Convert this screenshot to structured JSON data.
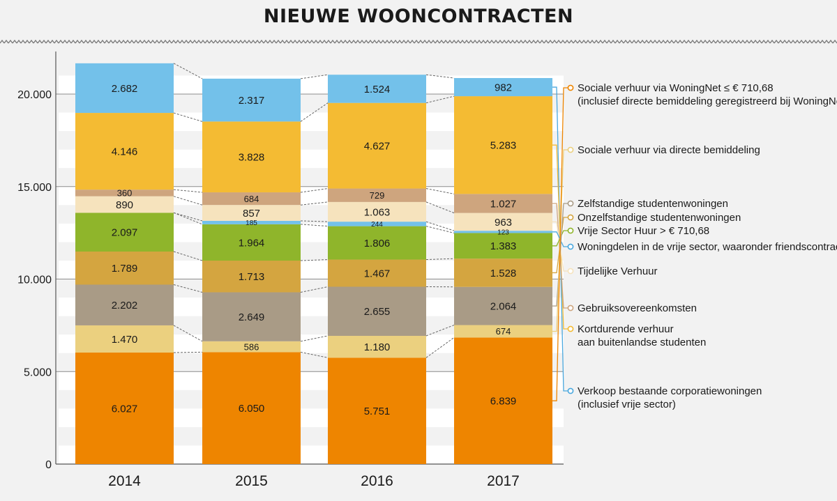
{
  "title": "NIEUWE WOONCONTRACTEN",
  "chart_data": {
    "type": "bar",
    "stacked": true,
    "title": "NIEUWE WOONCONTRACTEN",
    "categories": [
      "2014",
      "2015",
      "2016",
      "2017"
    ],
    "ylim": [
      0,
      22000
    ],
    "yticks": [
      0,
      5000,
      10000,
      15000,
      20000
    ],
    "ytick_labels": [
      "0",
      "5.000",
      "10.000",
      "15.000",
      "20.000"
    ],
    "grid": true,
    "legend_position": "right",
    "series": [
      {
        "name": "Sociale verhuur via WoningNet ≤ € 710,68",
        "note": "(inclusief directe bemiddeling geregistreerd bij WoningNet)",
        "color": "#ee8500",
        "values": [
          6027,
          6050,
          5751,
          6839
        ],
        "labels": [
          "6.027",
          "6.050",
          "5.751",
          "6.839"
        ]
      },
      {
        "name": "Sociale verhuur via directe bemiddeling",
        "note": "",
        "color": "#ebd07f",
        "values": [
          1470,
          586,
          1180,
          674
        ],
        "labels": [
          "1.470",
          "586",
          "1.180",
          "674"
        ]
      },
      {
        "name": "Zelfstandige studentenwoningen",
        "note": "",
        "color": "#a99b86",
        "values": [
          2202,
          2649,
          2655,
          2064
        ],
        "labels": [
          "2.202",
          "2.649",
          "2.655",
          "2.064"
        ]
      },
      {
        "name": "Onzelfstandige studentenwoningen",
        "note": "",
        "color": "#d4a540",
        "values": [
          1789,
          1713,
          1467,
          1528
        ],
        "labels": [
          "1.789",
          "1.713",
          "1.467",
          "1.528"
        ]
      },
      {
        "name": "Vrije Sector Huur >  € 710,68",
        "note": "",
        "color": "#8fb52b",
        "values": [
          2097,
          1964,
          1806,
          1383
        ],
        "labels": [
          "2.097",
          "1.964",
          "1.806",
          "1.383"
        ]
      },
      {
        "name": "Woningdelen in de vrije sector, waaronder friendscontracten",
        "note": "",
        "color": "#73c1ea",
        "values": [
          0,
          185,
          244,
          123
        ],
        "labels": [
          "",
          "185",
          "244",
          "123"
        ]
      },
      {
        "name": "Tijdelijke Verhuur",
        "note": "",
        "color": "#f6e3bd",
        "values": [
          890,
          857,
          1063,
          963
        ],
        "labels": [
          "890",
          "857",
          "1.063",
          "963"
        ]
      },
      {
        "name": "Gebruiksovereenkomsten",
        "note": "",
        "color": "#cea57e",
        "values": [
          360,
          684,
          729,
          1027
        ],
        "labels": [
          "360",
          "684",
          "729",
          "1.027"
        ]
      },
      {
        "name": "Kortdurende verhuur",
        "note": "aan buitenlandse studenten",
        "color": "#f4bb33",
        "values": [
          4146,
          3828,
          4627,
          5283
        ],
        "labels": [
          "4.146",
          "3.828",
          "4.627",
          "5.283"
        ]
      },
      {
        "name": "Verkoop bestaande corporatiewoningen",
        "note": "(inclusief vrije sector)",
        "color": "#73c1ea",
        "values": [
          2682,
          2317,
          1524,
          982
        ],
        "labels": [
          "2.682",
          "2.317",
          "1.524",
          "982"
        ]
      }
    ]
  }
}
